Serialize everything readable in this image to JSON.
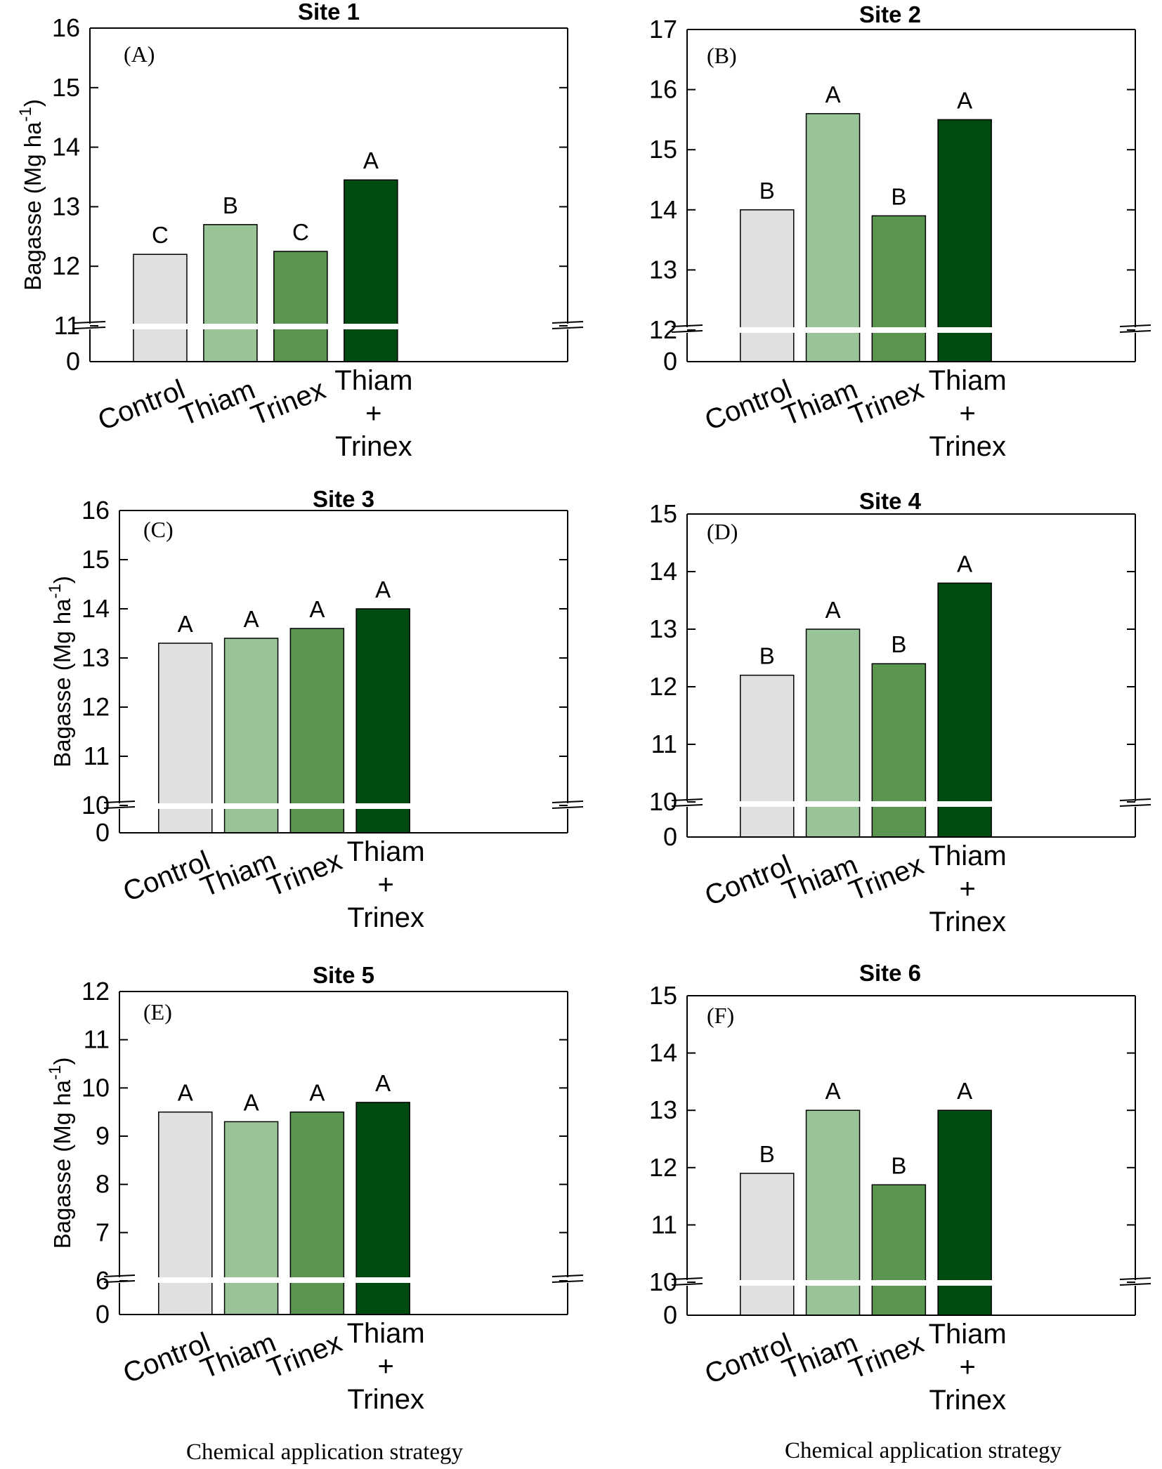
{
  "chart_data": [
    {
      "type": "bar",
      "panel": "(A)",
      "title": "Site 1",
      "ylabel": "Bagasse (Mg ha-1)",
      "categories": [
        "Control",
        "Thiam",
        "Trinex",
        "Thiam + Trinex"
      ],
      "values": [
        12.2,
        12.7,
        12.25,
        13.45
      ],
      "letters": [
        "C",
        "B",
        "C",
        "A"
      ],
      "yticks": [
        11,
        12,
        13,
        14,
        15,
        16
      ],
      "ylim": [
        11,
        16
      ],
      "axis_break": [
        0,
        11
      ]
    },
    {
      "type": "bar",
      "panel": "(B)",
      "title": "Site 2",
      "ylabel": "",
      "categories": [
        "Control",
        "Thiam",
        "Trinex",
        "Thiam + Trinex"
      ],
      "values": [
        14.0,
        15.6,
        13.9,
        15.5
      ],
      "letters": [
        "B",
        "A",
        "B",
        "A"
      ],
      "yticks": [
        12,
        13,
        14,
        15,
        16,
        17
      ],
      "ylim": [
        12,
        17
      ],
      "axis_break": [
        0,
        12
      ]
    },
    {
      "type": "bar",
      "panel": "(C)",
      "title": "Site 3",
      "ylabel": "Bagasse (Mg ha-1)",
      "categories": [
        "Control",
        "Thiam",
        "Trinex",
        "Thiam + Trinex"
      ],
      "values": [
        13.3,
        13.4,
        13.6,
        14.0
      ],
      "letters": [
        "A",
        "A",
        "A",
        "A"
      ],
      "yticks": [
        10,
        11,
        12,
        13,
        14,
        15,
        16
      ],
      "ylim": [
        10,
        16
      ],
      "axis_break": [
        0,
        10
      ]
    },
    {
      "type": "bar",
      "panel": "(D)",
      "title": "Site 4",
      "ylabel": "",
      "categories": [
        "Control",
        "Thiam",
        "Trinex",
        "Thiam + Trinex"
      ],
      "values": [
        12.2,
        13.0,
        12.4,
        13.8
      ],
      "letters": [
        "B",
        "A",
        "B",
        "A"
      ],
      "yticks": [
        10,
        11,
        12,
        13,
        14,
        15
      ],
      "ylim": [
        10,
        15
      ],
      "axis_break": [
        0,
        10
      ]
    },
    {
      "type": "bar",
      "panel": "(E)",
      "title": "Site 5",
      "ylabel": "Bagasse (Mg ha-1)",
      "categories": [
        "Control",
        "Thiam",
        "Trinex",
        "Thiam + Trinex"
      ],
      "values": [
        9.5,
        9.3,
        9.5,
        9.7
      ],
      "letters": [
        "A",
        "A",
        "A",
        "A"
      ],
      "yticks": [
        6,
        7,
        8,
        9,
        10,
        11,
        12
      ],
      "ylim": [
        6,
        12
      ],
      "axis_break": [
        0,
        6
      ]
    },
    {
      "type": "bar",
      "panel": "(F)",
      "title": "Site 6",
      "ylabel": "",
      "categories": [
        "Control",
        "Thiam",
        "Trinex",
        "Thiam + Trinex"
      ],
      "values": [
        11.9,
        13.0,
        11.7,
        13.0
      ],
      "letters": [
        "B",
        "A",
        "B",
        "A"
      ],
      "yticks": [
        10,
        11,
        12,
        13,
        14,
        15
      ],
      "ylim": [
        10,
        15
      ],
      "axis_break": [
        0,
        10
      ]
    }
  ],
  "x_axis_title_left": "Chemical application strategy",
  "x_axis_title_right": "Chemical application strategy",
  "colors": {
    "control": "#e0e0e0",
    "thiam": "#98c498",
    "trinex": "#5a9650",
    "thiam_trinex": "#004b0f",
    "axis": "#000000",
    "break_gap": "#ffffff"
  }
}
